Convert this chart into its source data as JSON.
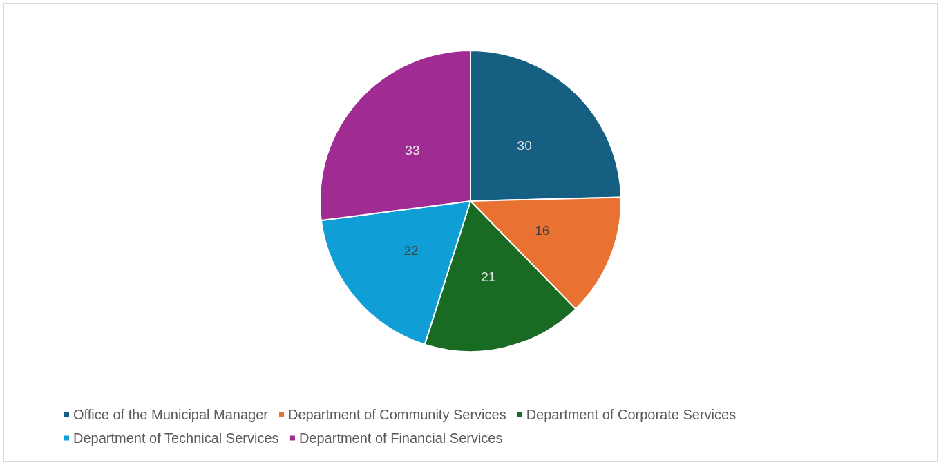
{
  "chart_data": {
    "type": "pie",
    "categories": [
      "Office of the Municipal Manager",
      "Department of Community Services",
      "Department of Corporate Services",
      "Department of Technical Services",
      "Department of Financial Services"
    ],
    "values": [
      30,
      16,
      21,
      22,
      33
    ],
    "colors": [
      "#156082",
      "#e97132",
      "#196b24",
      "#0f9ed5",
      "#a02b93"
    ],
    "data_labels": true,
    "legend": "bottom"
  }
}
